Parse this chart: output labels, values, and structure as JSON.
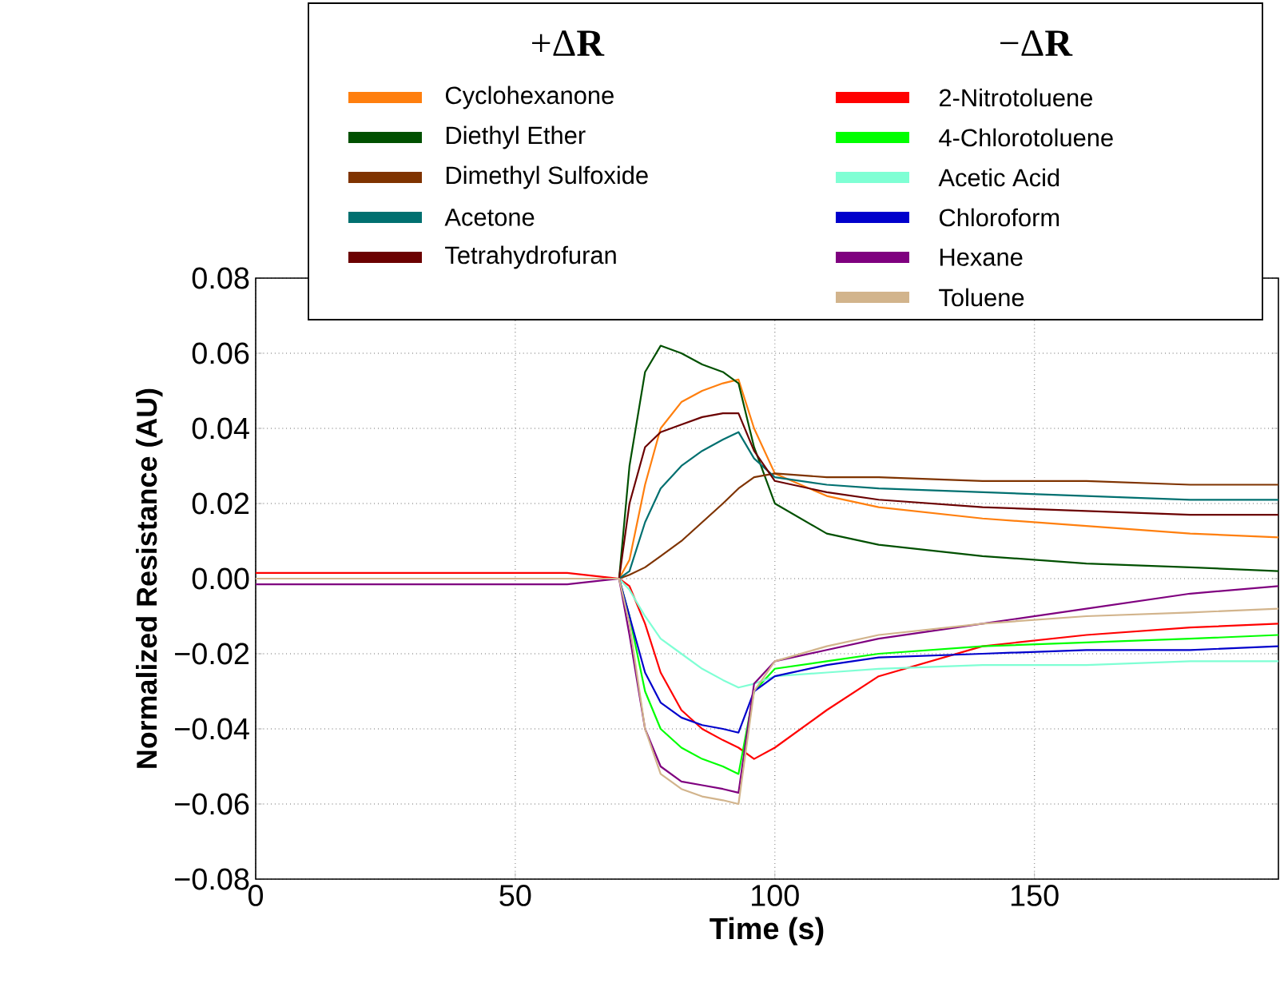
{
  "chart_data": {
    "type": "line",
    "xlabel": "Time (s)",
    "ylabel": "Normalized Resistance (AU)",
    "x": [
      0,
      20,
      40,
      60,
      70,
      72,
      75,
      78,
      82,
      86,
      90,
      93,
      96,
      100,
      110,
      120,
      140,
      160,
      180,
      197
    ],
    "xlim": [
      0,
      197
    ],
    "xticks": [
      0,
      50,
      100,
      150
    ],
    "ylim": [
      -0.08,
      0.08
    ],
    "yticks": [
      {
        "value": -0.08,
        "label": "−0.08"
      },
      {
        "value": -0.06,
        "label": "−0.06"
      },
      {
        "value": -0.04,
        "label": "−0.04"
      },
      {
        "value": -0.02,
        "label": "−0.02"
      },
      {
        "value": 0,
        "label": "0.00"
      },
      {
        "value": 0.02,
        "label": "0.02"
      },
      {
        "value": 0.04,
        "label": "0.04"
      },
      {
        "value": 0.06,
        "label": "0.06"
      },
      {
        "value": 0.08,
        "label": "0.08"
      }
    ],
    "grid": true,
    "legend": "top",
    "annotations": [
      "+Δ**R**",
      "−Δ**R**"
    ],
    "series": [
      {
        "name": "Cyclohexanone",
        "color": "#ff7f0e",
        "values": [
          null,
          null,
          null,
          null,
          0,
          0.005,
          0.025,
          0.04,
          0.047,
          0.05,
          0.052,
          0.053,
          0.04,
          0.028,
          0.022,
          0.019,
          0.016,
          0.014,
          0.012,
          0.011
        ]
      },
      {
        "name": "Diethyl Ether",
        "color": "#005000",
        "values": [
          null,
          null,
          null,
          null,
          0,
          0.03,
          0.055,
          0.062,
          0.06,
          0.057,
          0.055,
          0.052,
          0.035,
          0.02,
          0.012,
          0.009,
          0.006,
          0.004,
          0.003,
          0.002
        ]
      },
      {
        "name": "Dimethyl Sulfoxide",
        "color": "#7f3300",
        "values": [
          null,
          null,
          null,
          null,
          0,
          0.001,
          0.003,
          0.006,
          0.01,
          0.015,
          0.02,
          0.024,
          0.027,
          0.028,
          0.027,
          0.027,
          0.026,
          0.026,
          0.025,
          0.025
        ]
      },
      {
        "name": "Acetone",
        "color": "#007070",
        "values": [
          null,
          null,
          null,
          null,
          0,
          0.002,
          0.015,
          0.024,
          0.03,
          0.034,
          0.037,
          0.039,
          0.032,
          0.027,
          0.025,
          0.024,
          0.023,
          0.022,
          0.021,
          0.021
        ]
      },
      {
        "name": "Tetrahydrofuran",
        "color": "#6b0000",
        "values": [
          null,
          null,
          null,
          null,
          0,
          0.02,
          0.035,
          0.039,
          0.041,
          0.043,
          0.044,
          0.044,
          0.034,
          0.026,
          0.023,
          0.021,
          0.019,
          0.018,
          0.017,
          0.017
        ]
      },
      {
        "name": "2-Nitrotoluene",
        "color": "#ff0000",
        "values": [
          0.0015,
          0.0015,
          0.0015,
          0.0015,
          0,
          -0.002,
          -0.012,
          -0.025,
          -0.035,
          -0.04,
          -0.043,
          -0.045,
          -0.048,
          -0.045,
          -0.035,
          -0.026,
          -0.018,
          -0.015,
          -0.013,
          -0.012
        ]
      },
      {
        "name": "4-Chlorotoluene",
        "color": "#00ff00",
        "values": [
          null,
          null,
          null,
          null,
          0,
          -0.01,
          -0.03,
          -0.04,
          -0.045,
          -0.048,
          -0.05,
          -0.052,
          -0.03,
          -0.024,
          -0.022,
          -0.02,
          -0.018,
          -0.017,
          -0.016,
          -0.015
        ]
      },
      {
        "name": "Acetic Acid",
        "color": "#7fffd4",
        "values": [
          null,
          null,
          null,
          null,
          0,
          -0.003,
          -0.01,
          -0.016,
          -0.02,
          -0.024,
          -0.027,
          -0.029,
          -0.028,
          -0.026,
          -0.025,
          -0.024,
          -0.023,
          -0.023,
          -0.022,
          -0.022
        ]
      },
      {
        "name": "Chloroform",
        "color": "#0000cc",
        "values": [
          null,
          null,
          null,
          null,
          0,
          -0.01,
          -0.025,
          -0.033,
          -0.037,
          -0.039,
          -0.04,
          -0.041,
          -0.03,
          -0.026,
          -0.023,
          -0.021,
          -0.02,
          -0.019,
          -0.019,
          -0.018
        ]
      },
      {
        "name": "Hexane",
        "color": "#7f007f",
        "values": [
          -0.0015,
          -0.0015,
          -0.0015,
          -0.0015,
          0,
          -0.015,
          -0.04,
          -0.05,
          -0.054,
          -0.055,
          -0.056,
          -0.057,
          -0.028,
          -0.022,
          -0.019,
          -0.016,
          -0.012,
          -0.008,
          -0.004,
          -0.002
        ]
      },
      {
        "name": "Toluene",
        "color": "#d2b48c",
        "values": [
          0,
          0,
          0,
          0,
          0,
          -0.012,
          -0.04,
          -0.052,
          -0.056,
          -0.058,
          -0.059,
          -0.06,
          -0.03,
          -0.022,
          -0.018,
          -0.015,
          -0.012,
          -0.01,
          -0.009,
          -0.008
        ]
      }
    ]
  }
}
